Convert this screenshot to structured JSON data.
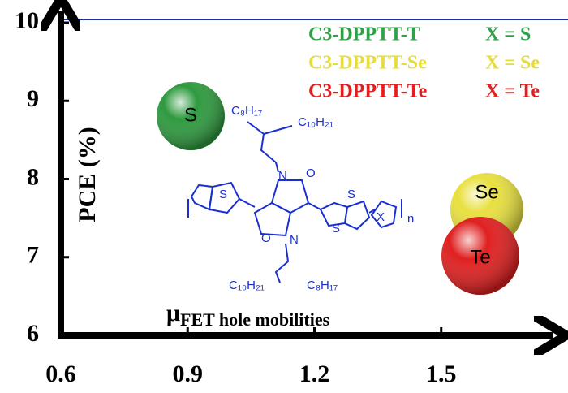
{
  "chart_data": {
    "type": "scatter",
    "ylabel": "PCE (%)",
    "xlabel": {
      "main": "μ",
      "sub": "FET hole mobilities"
    },
    "xlim": [
      0.6,
      1.8
    ],
    "ylim": [
      6,
      10
    ],
    "xticks": [
      0.6,
      0.9,
      1.2,
      1.5
    ],
    "yticks": [
      6,
      7,
      8,
      9,
      10
    ],
    "legend": [
      {
        "name": "C3-DPPTT-T",
        "condition": "X = S",
        "color": "#2fa048"
      },
      {
        "name": "C3-DPPTT-Se",
        "condition": "X = Se",
        "color": "#e6dc3a"
      },
      {
        "name": "C3-DPPTT-Te",
        "condition": "X = Te",
        "color": "#e21e1e"
      }
    ],
    "spheres": [
      {
        "label": "S",
        "color": "#2f9a3f"
      },
      {
        "label": "Se",
        "color": "#e8e040"
      },
      {
        "label": "Te",
        "color": "#e02020"
      }
    ],
    "structure": {
      "labels": [
        "C₈H₁₇",
        "C₁₀H₂₁",
        "N",
        "O",
        "S",
        "N",
        "O",
        "S",
        "S",
        "X",
        "n",
        "C₁₀H₂₁",
        "C₈H₁₇"
      ]
    }
  }
}
